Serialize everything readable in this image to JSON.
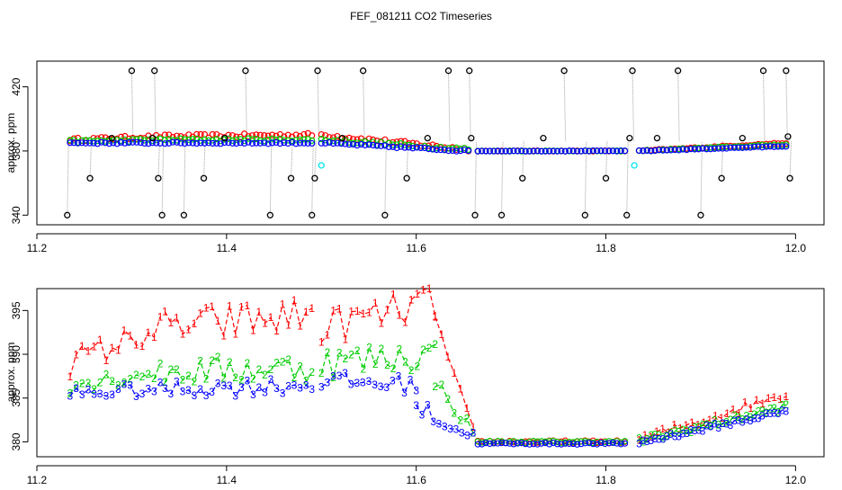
{
  "title": "FEF_081211  CO2 Timeseries",
  "colors": {
    "series_1": "#ff0000",
    "series_2": "#00cd00",
    "series_3": "#0000ff",
    "outlier": "#000000",
    "flagged": "#00e5ee",
    "drop_line": "#a0a0a0"
  },
  "chart_data": [
    {
      "type": "scatter",
      "panel": "top",
      "ylabel": "approx. ppm",
      "xlabel": "",
      "xlim": [
        11.2,
        12.03
      ],
      "ylim": [
        334,
        436
      ],
      "x_ticks": [
        "11.2",
        "11.4",
        "11.6",
        "11.8",
        "12.0"
      ],
      "x_tick_values": [
        11.2,
        11.4,
        11.6,
        11.8,
        12.0
      ],
      "y_ticks": [
        "340",
        "380",
        "420"
      ],
      "y_tick_values": [
        340,
        380,
        420
      ],
      "grid": false,
      "series": [
        {
          "name": "1",
          "segments": [
            {
              "x": [
                11.235,
                11.33
              ],
              "y": [
                387,
                389
              ],
              "jitter": 1.0
            },
            {
              "x": [
                11.335,
                11.49
              ],
              "y": [
                389,
                390
              ],
              "jitter": 1.2
            },
            {
              "x": [
                11.5,
                11.655
              ],
              "y": [
                390,
                381
              ],
              "jitter": 1.2
            },
            {
              "x": [
                11.665,
                11.82
              ],
              "y": [
                380,
                380
              ],
              "jitter": 0.2
            },
            {
              "x": [
                11.835,
                11.99
              ],
              "y": [
                380,
                385
              ],
              "jitter": 0.4
            }
          ]
        },
        {
          "name": "2",
          "segments": [
            {
              "x": [
                11.235,
                11.33
              ],
              "y": [
                386,
                387
              ],
              "jitter": 0.8
            },
            {
              "x": [
                11.335,
                11.49
              ],
              "y": [
                387,
                387
              ],
              "jitter": 0.8
            },
            {
              "x": [
                11.5,
                11.655
              ],
              "y": [
                387,
                381
              ],
              "jitter": 1.0
            },
            {
              "x": [
                11.665,
                11.82
              ],
              "y": [
                380,
                380
              ],
              "jitter": 0.2
            },
            {
              "x": [
                11.835,
                11.99
              ],
              "y": [
                380,
                384
              ],
              "jitter": 0.4
            }
          ]
        },
        {
          "name": "3",
          "segments": [
            {
              "x": [
                11.235,
                11.33
              ],
              "y": [
                385,
                385
              ],
              "jitter": 0.5
            },
            {
              "x": [
                11.335,
                11.49
              ],
              "y": [
                385,
                385
              ],
              "jitter": 0.5
            },
            {
              "x": [
                11.5,
                11.655
              ],
              "y": [
                385,
                380
              ],
              "jitter": 0.6
            },
            {
              "x": [
                11.665,
                11.82
              ],
              "y": [
                380,
                380
              ],
              "jitter": 0.2
            },
            {
              "x": [
                11.835,
                11.99
              ],
              "y": [
                380,
                383
              ],
              "jitter": 0.3
            }
          ]
        }
      ],
      "outliers": {
        "x": [
          11.232,
          11.256,
          11.279,
          11.3,
          11.322,
          11.324,
          11.328,
          11.332,
          11.355,
          11.376,
          11.398,
          11.42,
          11.446,
          11.468,
          11.49,
          11.493,
          11.496,
          11.522,
          11.544,
          11.567,
          11.59,
          11.612,
          11.634,
          11.656,
          11.658,
          11.662,
          11.69,
          11.712,
          11.734,
          11.756,
          11.778,
          11.8,
          11.822,
          11.825,
          11.828,
          11.854,
          11.876,
          11.9,
          11.922,
          11.944,
          11.966,
          11.99,
          11.992,
          11.994
        ],
        "y": [
          340,
          363,
          388,
          430,
          388,
          430,
          363,
          340,
          340,
          363,
          388,
          430,
          340,
          363,
          340,
          363,
          430,
          388,
          430,
          340,
          363,
          388,
          430,
          430,
          388,
          340,
          340,
          363,
          388,
          430,
          340,
          363,
          340,
          388,
          430,
          388,
          430,
          340,
          363,
          388,
          430,
          430,
          389,
          363
        ]
      },
      "flagged": {
        "x": [
          11.5,
          11.83
        ],
        "y": [
          371,
          371
        ]
      }
    },
    {
      "type": "line",
      "panel": "bottom",
      "ylabel": "approx. ppm",
      "xlabel": "",
      "xlim": [
        11.2,
        12.03
      ],
      "ylim": [
        378.3,
        397.5
      ],
      "x_ticks": [
        "11.2",
        "11.4",
        "11.6",
        "11.8",
        "12.0"
      ],
      "x_tick_values": [
        11.2,
        11.4,
        11.6,
        11.8,
        12.0
      ],
      "y_ticks": [
        "380",
        "385",
        "390",
        "395"
      ],
      "y_tick_values": [
        380,
        385,
        390,
        395
      ],
      "grid": false,
      "point_labels": [
        "1",
        "2",
        "3"
      ],
      "series": [
        {
          "name": "1",
          "segments": [
            {
              "x": [
                11.235,
                11.33
              ],
              "y": [
                389,
                393
              ],
              "jitter": 1.6
            },
            {
              "x": [
                11.335,
                11.49
              ],
              "y": [
                393,
                394.5
              ],
              "jitter": 2.2
            },
            {
              "x": [
                11.5,
                11.62
              ],
              "y": [
                393,
                396
              ],
              "jitter": 2.0
            },
            {
              "x": [
                11.62,
                11.66
              ],
              "y": [
                394,
                381
              ],
              "jitter": 0.8
            },
            {
              "x": [
                11.665,
                11.82
              ],
              "y": [
                380,
                380
              ],
              "jitter": 0.15
            },
            {
              "x": [
                11.835,
                11.99
              ],
              "y": [
                380.2,
                385.5
              ],
              "jitter": 0.6
            }
          ]
        },
        {
          "name": "2",
          "segments": [
            {
              "x": [
                11.235,
                11.33
              ],
              "y": [
                386.5,
                388
              ],
              "jitter": 1.0
            },
            {
              "x": [
                11.335,
                11.49
              ],
              "y": [
                388,
                388.5
              ],
              "jitter": 1.6
            },
            {
              "x": [
                11.5,
                11.62
              ],
              "y": [
                389,
                390
              ],
              "jitter": 1.8
            },
            {
              "x": [
                11.62,
                11.66
              ],
              "y": [
                387,
                381
              ],
              "jitter": 0.8
            },
            {
              "x": [
                11.665,
                11.82
              ],
              "y": [
                380,
                380
              ],
              "jitter": 0.12
            },
            {
              "x": [
                11.835,
                11.99
              ],
              "y": [
                380.1,
                384
              ],
              "jitter": 0.4
            }
          ]
        },
        {
          "name": "3",
          "segments": [
            {
              "x": [
                11.235,
                11.33
              ],
              "y": [
                385.5,
                386
              ],
              "jitter": 0.8
            },
            {
              "x": [
                11.335,
                11.49
              ],
              "y": [
                386,
                386.5
              ],
              "jitter": 1.0
            },
            {
              "x": [
                11.5,
                11.6
              ],
              "y": [
                387,
                386.5
              ],
              "jitter": 1.0
            },
            {
              "x": [
                11.6,
                11.66
              ],
              "y": [
                384,
                380.5
              ],
              "jitter": 1.0
            },
            {
              "x": [
                11.665,
                11.82
              ],
              "y": [
                379.8,
                379.8
              ],
              "jitter": 0.1
            },
            {
              "x": [
                11.835,
                11.99
              ],
              "y": [
                379.9,
                383.5
              ],
              "jitter": 0.3
            }
          ]
        }
      ]
    }
  ]
}
